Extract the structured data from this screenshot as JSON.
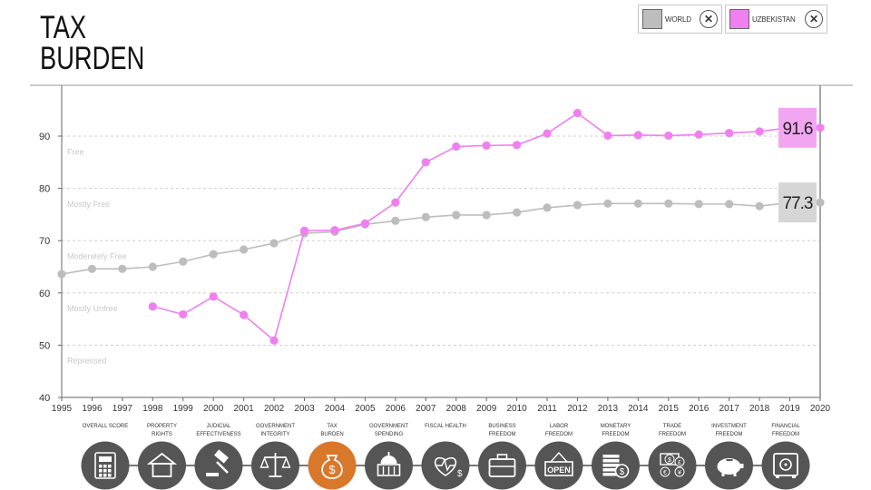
{
  "page": {
    "title_line1": "TAX",
    "title_line2": "BURDEN"
  },
  "legend": [
    {
      "label": "WORLD",
      "color": "#bdbdbd"
    },
    {
      "label": "UZBEKISTAN",
      "color": "#f07ff0"
    }
  ],
  "chart_data": {
    "type": "line",
    "x": [
      1995,
      1996,
      1997,
      1998,
      1999,
      2000,
      2001,
      2002,
      2003,
      2004,
      2005,
      2006,
      2007,
      2008,
      2009,
      2010,
      2011,
      2012,
      2013,
      2014,
      2015,
      2016,
      2017,
      2018,
      2019,
      2020
    ],
    "ylim": [
      40,
      100
    ],
    "yticks": [
      40,
      50,
      60,
      70,
      80,
      90
    ],
    "grid": true,
    "zones": [
      {
        "label": "Free",
        "y": 87
      },
      {
        "label": "Mostly Free",
        "y": 77
      },
      {
        "label": "Moderately Free",
        "y": 67
      },
      {
        "label": "Mostly Unfree",
        "y": 57
      },
      {
        "label": "Repressed",
        "y": 47
      }
    ],
    "series": [
      {
        "name": "WORLD",
        "color": "#bdbdbd",
        "values": [
          63.6,
          64.6,
          64.6,
          65.0,
          66.0,
          67.4,
          68.3,
          69.5,
          71.4,
          71.7,
          73.1,
          73.8,
          74.5,
          74.9,
          74.9,
          75.4,
          76.3,
          76.8,
          77.1,
          77.1,
          77.1,
          77.0,
          77.0,
          76.6,
          77.3,
          77.3
        ],
        "end_label": "77.3"
      },
      {
        "name": "UZBEKISTAN",
        "color": "#f07ff0",
        "values": [
          null,
          null,
          null,
          57.4,
          55.9,
          59.3,
          55.8,
          50.9,
          71.9,
          72.0,
          73.3,
          77.3,
          85.0,
          88.0,
          88.2,
          88.3,
          90.5,
          94.4,
          90.1,
          90.2,
          90.1,
          90.3,
          90.6,
          90.9,
          91.6,
          91.6
        ],
        "end_label": "91.6"
      }
    ]
  },
  "categories": [
    {
      "label_lines": [
        "OVERALL SCORE"
      ],
      "icon": "calculator-icon",
      "active": false
    },
    {
      "label_lines": [
        "PROPERTY",
        "RIGHTS"
      ],
      "icon": "house-icon",
      "active": false
    },
    {
      "label_lines": [
        "JUDICIAL",
        "EFFECTIVENESS"
      ],
      "icon": "gavel-icon",
      "active": false
    },
    {
      "label_lines": [
        "GOVERNMENT",
        "INTEGRITY"
      ],
      "icon": "scales-icon",
      "active": false
    },
    {
      "label_lines": [
        "TAX",
        "BURDEN"
      ],
      "icon": "money-bag-icon",
      "active": true
    },
    {
      "label_lines": [
        "GOVERNMENT",
        "SPENDING"
      ],
      "icon": "capitol-icon",
      "active": false
    },
    {
      "label_lines": [
        "FISCAL HEALTH"
      ],
      "icon": "heart-dollar-icon",
      "active": false
    },
    {
      "label_lines": [
        "BUSINESS",
        "FREEDOM"
      ],
      "icon": "briefcase-icon",
      "active": false
    },
    {
      "label_lines": [
        "LABOR",
        "FREEDOM"
      ],
      "icon": "open-sign-icon",
      "active": false
    },
    {
      "label_lines": [
        "MONETARY",
        "FREEDOM"
      ],
      "icon": "coins-icon",
      "active": false
    },
    {
      "label_lines": [
        "TRADE",
        "FREEDOM"
      ],
      "icon": "currency-exchange-icon",
      "active": false
    },
    {
      "label_lines": [
        "INVESTMENT",
        "FREEDOM"
      ],
      "icon": "piggy-bank-icon",
      "active": false
    },
    {
      "label_lines": [
        "FINANCIAL",
        "FREEDOM"
      ],
      "icon": "safe-icon",
      "active": false
    }
  ],
  "colors": {
    "active_category": "#d9772b",
    "inactive_category": "#555555",
    "world": "#bdbdbd",
    "uzbekistan": "#f07ff0"
  }
}
